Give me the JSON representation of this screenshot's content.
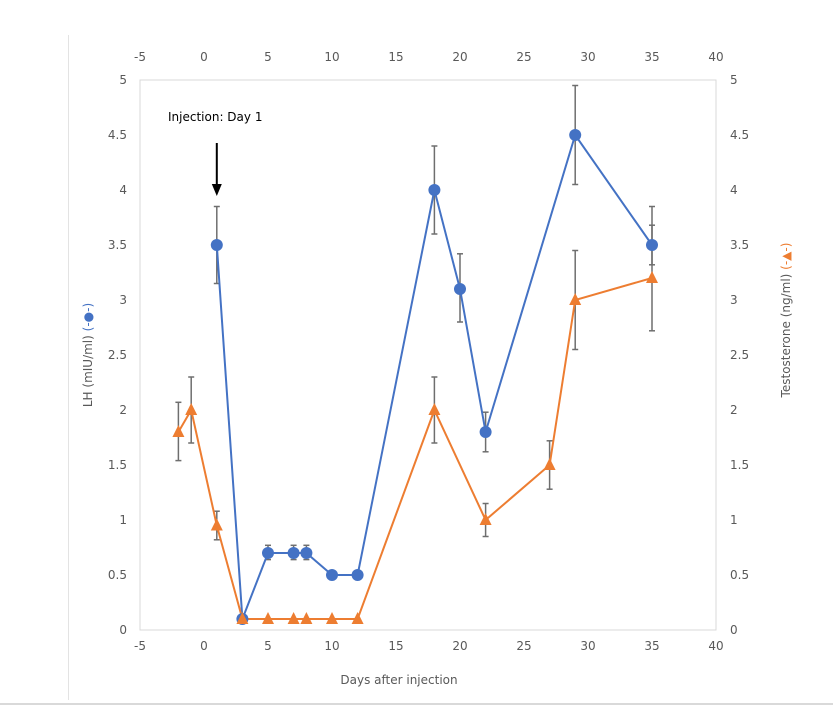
{
  "chart_data": {
    "type": "line",
    "xlabel": "Days after injection",
    "ylabel_left": {
      "text": "LH (mIU/ml)",
      "marker": "(-●-)"
    },
    "ylabel_right": {
      "text": "Testosterone (ng/ml)",
      "marker": "(-▲-)"
    },
    "annotation": "Injection: Day 1",
    "annotation_x": 1,
    "xlim": [
      -5,
      40
    ],
    "ylim": [
      0,
      5
    ],
    "x_ticks": [
      "-5",
      "0",
      "5",
      "10",
      "15",
      "20",
      "25",
      "30",
      "35",
      "40"
    ],
    "y_ticks": [
      "0",
      "0.5",
      "1",
      "1.5",
      "2",
      "2.5",
      "3",
      "3.5",
      "4",
      "4.5",
      "5"
    ],
    "grid": false,
    "series": [
      {
        "name": "LH",
        "axis": "left",
        "color": "#4472C4",
        "marker": "circle",
        "x": [
          1,
          3,
          5,
          7,
          8,
          10,
          12,
          18,
          20,
          22,
          29,
          35
        ],
        "y": [
          3.5,
          0.1,
          0.7,
          0.7,
          0.7,
          0.5,
          0.5,
          4.0,
          3.1,
          1.8,
          4.5,
          3.5
        ],
        "err_low": [
          3.15,
          null,
          0.64,
          0.64,
          0.64,
          null,
          null,
          3.6,
          2.8,
          1.62,
          4.05,
          3.32
        ],
        "err_high": [
          3.85,
          null,
          0.77,
          0.77,
          0.77,
          null,
          null,
          4.4,
          3.42,
          1.98,
          4.95,
          3.85
        ]
      },
      {
        "name": "Testosterone",
        "axis": "right",
        "color": "#ED7D31",
        "marker": "triangle",
        "x": [
          -2,
          -1,
          1,
          3,
          5,
          7,
          8,
          10,
          12,
          18,
          22,
          27,
          29,
          35
        ],
        "y": [
          1.8,
          2.0,
          0.95,
          0.1,
          0.1,
          0.1,
          0.1,
          0.1,
          0.1,
          2.0,
          1.0,
          1.5,
          3.0,
          3.2
        ],
        "err_low": [
          1.54,
          1.7,
          0.82,
          null,
          null,
          null,
          null,
          null,
          null,
          1.7,
          0.85,
          1.28,
          2.55,
          2.72
        ],
        "err_high": [
          2.07,
          2.3,
          1.08,
          null,
          null,
          null,
          null,
          null,
          null,
          2.3,
          1.15,
          1.72,
          3.45,
          3.68
        ]
      }
    ]
  }
}
